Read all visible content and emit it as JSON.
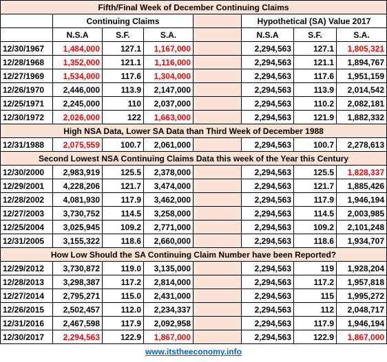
{
  "title": "Fifth/Final Week of December Continuing Claims",
  "headers": {
    "group_left": "Continuing Claims",
    "group_right": "Hypothetical (SA) Value 2017",
    "columns": [
      "N.S.A",
      "S.F.",
      "S.A.",
      "N.S.A",
      "S.F.",
      "S.A."
    ]
  },
  "red_color": "#ff0000",
  "blocks": [
    {
      "rows": [
        {
          "cells": [
            "12/30/1967",
            "1,484,000",
            "127.1",
            "1,167,000",
            "2,294,563",
            "127.1",
            "1,805,321"
          ],
          "red": [
            1,
            3,
            6
          ]
        },
        {
          "cells": [
            "12/28/1968",
            "1,352,000",
            "121.1",
            "1,116,000",
            "2,294,563",
            "121.1",
            "1,894,767"
          ],
          "red": [
            1,
            3
          ]
        },
        {
          "cells": [
            "12/27/1969",
            "1,534,000",
            "117.6",
            "1,304,000",
            "2,294,563",
            "117.6",
            "1,951,159"
          ],
          "red": [
            1,
            3
          ]
        },
        {
          "cells": [
            "12/26/1970",
            "2,446,000",
            "113.9",
            "2,147,000",
            "2,294,563",
            "113.9",
            "2,014,542"
          ],
          "red": []
        },
        {
          "cells": [
            "12/25/1971",
            "2,245,000",
            "110",
            "2,037,000",
            "2,294,563",
            "110.2",
            "2,082,181"
          ],
          "red": []
        },
        {
          "cells": [
            "12/30/1972",
            "2,026,000",
            "122",
            "1,663,000",
            "2,294,563",
            "121.9",
            "1,882,332"
          ],
          "red": [
            1,
            3
          ]
        }
      ]
    },
    {
      "heading": "High NSA Data, Lower SA Data than  Third Week of December 1988",
      "rows": [
        {
          "cells": [
            "12/31/1988",
            "2,075,559",
            "100.7",
            "2,061,000",
            "2,294,563",
            "100.7",
            "2,278,613"
          ],
          "red": [
            1
          ]
        }
      ]
    },
    {
      "heading": "Second Lowest NSA Continuing Claims Data this week of the Year this Century",
      "rows": [
        {
          "cells": [
            "12/30/2000",
            "2,983,919",
            "125.5",
            "2,378,000",
            "2,294,563",
            "125.5",
            "1,828,337"
          ],
          "red": [
            6
          ]
        },
        {
          "cells": [
            "12/29/2001",
            "4,228,206",
            "121.7",
            "3,474,000",
            "2,294,563",
            "121.7",
            "1,885,426"
          ],
          "red": []
        },
        {
          "cells": [
            "12/28/2002",
            "4,081,930",
            "117.9",
            "3,462,000",
            "2,294,563",
            "117.9",
            "1,946,194"
          ],
          "red": []
        },
        {
          "cells": [
            "12/27/2003",
            "3,730,752",
            "114.5",
            "3,258,000",
            "2,294,563",
            "114.5",
            "2,003,985"
          ],
          "red": []
        },
        {
          "cells": [
            "12/25/2004",
            "3,025,945",
            "109.2",
            "2,771,000",
            "2,294,563",
            "109.2",
            "2,101,248"
          ],
          "red": []
        },
        {
          "cells": [
            "12/31/2005",
            "3,155,322",
            "118.6",
            "2,660,000",
            "2,294,563",
            "118.6",
            "1,934,707"
          ],
          "red": []
        }
      ]
    },
    {
      "heading": "How Low Should the SA Continuing Claim Number have been Reported?",
      "rows": [
        {
          "cells": [
            "12/29/2012",
            "3,730,872",
            "119.0",
            "3,135,000",
            "2,294,563",
            "119",
            "1,928,204"
          ],
          "red": []
        },
        {
          "cells": [
            "12/28/2013",
            "3,298,387",
            "117.2",
            "2,814,000",
            "2,294,563",
            "117.2",
            "1,957,818"
          ],
          "red": []
        },
        {
          "cells": [
            "12/27/2014",
            "2,795,271",
            "115.0",
            "2,431,000",
            "2,294,563",
            "115",
            "1,995,272"
          ],
          "red": []
        },
        {
          "cells": [
            "12/26/2015",
            "2,502,457",
            "112.0",
            "2,234,337",
            "2,294,563",
            "112",
            "2,048,717"
          ],
          "red": []
        },
        {
          "cells": [
            "12/31/2016",
            "2,467,598",
            "117.9",
            "2,092,958",
            "2,294,563",
            "117.9",
            "1,946,194"
          ],
          "red": []
        },
        {
          "cells": [
            "12/30/2017",
            "2,294,563",
            "122.9",
            "1,867,000",
            "2,294,563",
            "122.9",
            "1,867,000"
          ],
          "red": [
            1,
            3,
            6
          ]
        }
      ]
    }
  ],
  "footer": "www.itstheeconomy.info"
}
